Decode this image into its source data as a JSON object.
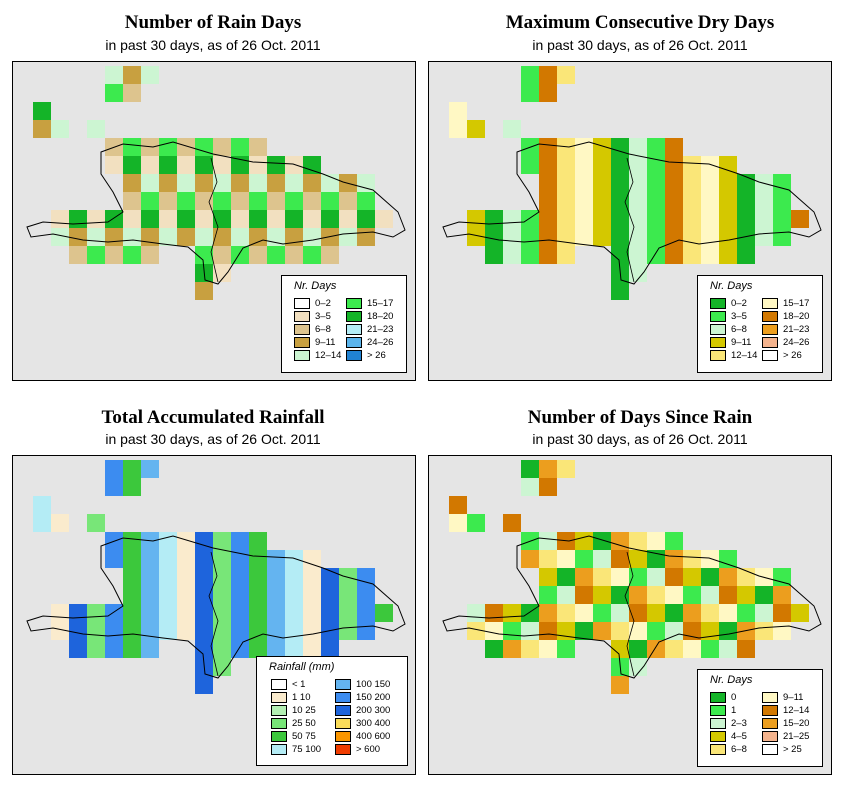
{
  "panels": [
    {
      "title": "Number of Rain Days",
      "subtitle": "in past 30 days, as of  26 Oct. 2011",
      "legend": {
        "title": "Nr. Days",
        "items": [
          {
            "label": "0–2",
            "color": "#ffffff"
          },
          {
            "label": "3–5",
            "color": "#f2e0c0"
          },
          {
            "label": "6–8",
            "color": "#ddc48e"
          },
          {
            "label": "9–11",
            "color": "#c8a040"
          },
          {
            "label": "12–14",
            "color": "#ccf5d2"
          },
          {
            "label": "15–17",
            "color": "#3cea4e"
          },
          {
            "label": "18–20",
            "color": "#14b428"
          },
          {
            "label": "21–23",
            "color": "#b4ecf5"
          },
          {
            "label": "24–26",
            "color": "#5ab4ec"
          },
          {
            "label": "> 26",
            "color": "#2082d2"
          }
        ]
      }
    },
    {
      "title": "Maximum Consecutive Dry Days",
      "subtitle": "in past 30 days, as of  26 Oct. 2011",
      "legend": {
        "title": "Nr. Days",
        "items": [
          {
            "label": "0–2",
            "color": "#14b428"
          },
          {
            "label": "3–5",
            "color": "#3cea4e"
          },
          {
            "label": "6–8",
            "color": "#ccf5d2"
          },
          {
            "label": "9–11",
            "color": "#d4c800"
          },
          {
            "label": "12–14",
            "color": "#fae678"
          },
          {
            "label": "15–17",
            "color": "#fff8c4"
          },
          {
            "label": "18–20",
            "color": "#d27800"
          },
          {
            "label": "21–23",
            "color": "#ec9e1e"
          },
          {
            "label": "24–26",
            "color": "#f5b48e"
          },
          {
            "label": "> 26",
            "color": "#ffffff"
          }
        ]
      }
    },
    {
      "title": "Total Accumulated Rainfall",
      "subtitle": "in past 30 days, as of  26 Oct. 2011",
      "legend": {
        "title": "Rainfall (mm)",
        "items": [
          {
            "label": "< 1",
            "color": "#ffffff"
          },
          {
            "label": "1    10",
            "color": "#faebcd"
          },
          {
            "label": "10    25",
            "color": "#b4f0b4"
          },
          {
            "label": "25    50",
            "color": "#78e678"
          },
          {
            "label": "50    75",
            "color": "#3cc83c"
          },
          {
            "label": "75    100",
            "color": "#b4ecf5"
          },
          {
            "label": "100    150",
            "color": "#64b4f0"
          },
          {
            "label": "150    200",
            "color": "#3c8cf0"
          },
          {
            "label": "200    300",
            "color": "#1e64dc"
          },
          {
            "label": "300    400",
            "color": "#fadc5a"
          },
          {
            "label": "400    600",
            "color": "#fa9600"
          },
          {
            "label": "> 600",
            "color": "#f03c00"
          }
        ]
      }
    },
    {
      "title": "Number of Days Since Rain",
      "subtitle": "in past 30 days, as of  26 Oct. 2011",
      "legend": {
        "title": "Nr. Days",
        "items": [
          {
            "label": "0",
            "color": "#14b428"
          },
          {
            "label": "1",
            "color": "#3cea4e"
          },
          {
            "label": "2–3",
            "color": "#ccf5d2"
          },
          {
            "label": "4–5",
            "color": "#d4c800"
          },
          {
            "label": "6–8",
            "color": "#fae678"
          },
          {
            "label": "9–11",
            "color": "#fff8c4"
          },
          {
            "label": "12–14",
            "color": "#d27800"
          },
          {
            "label": "15–20",
            "color": "#ec9e1e"
          },
          {
            "label": "21–25",
            "color": "#f5b48e"
          },
          {
            "label": "> 25",
            "color": "#ffffff"
          }
        ]
      }
    }
  ]
}
